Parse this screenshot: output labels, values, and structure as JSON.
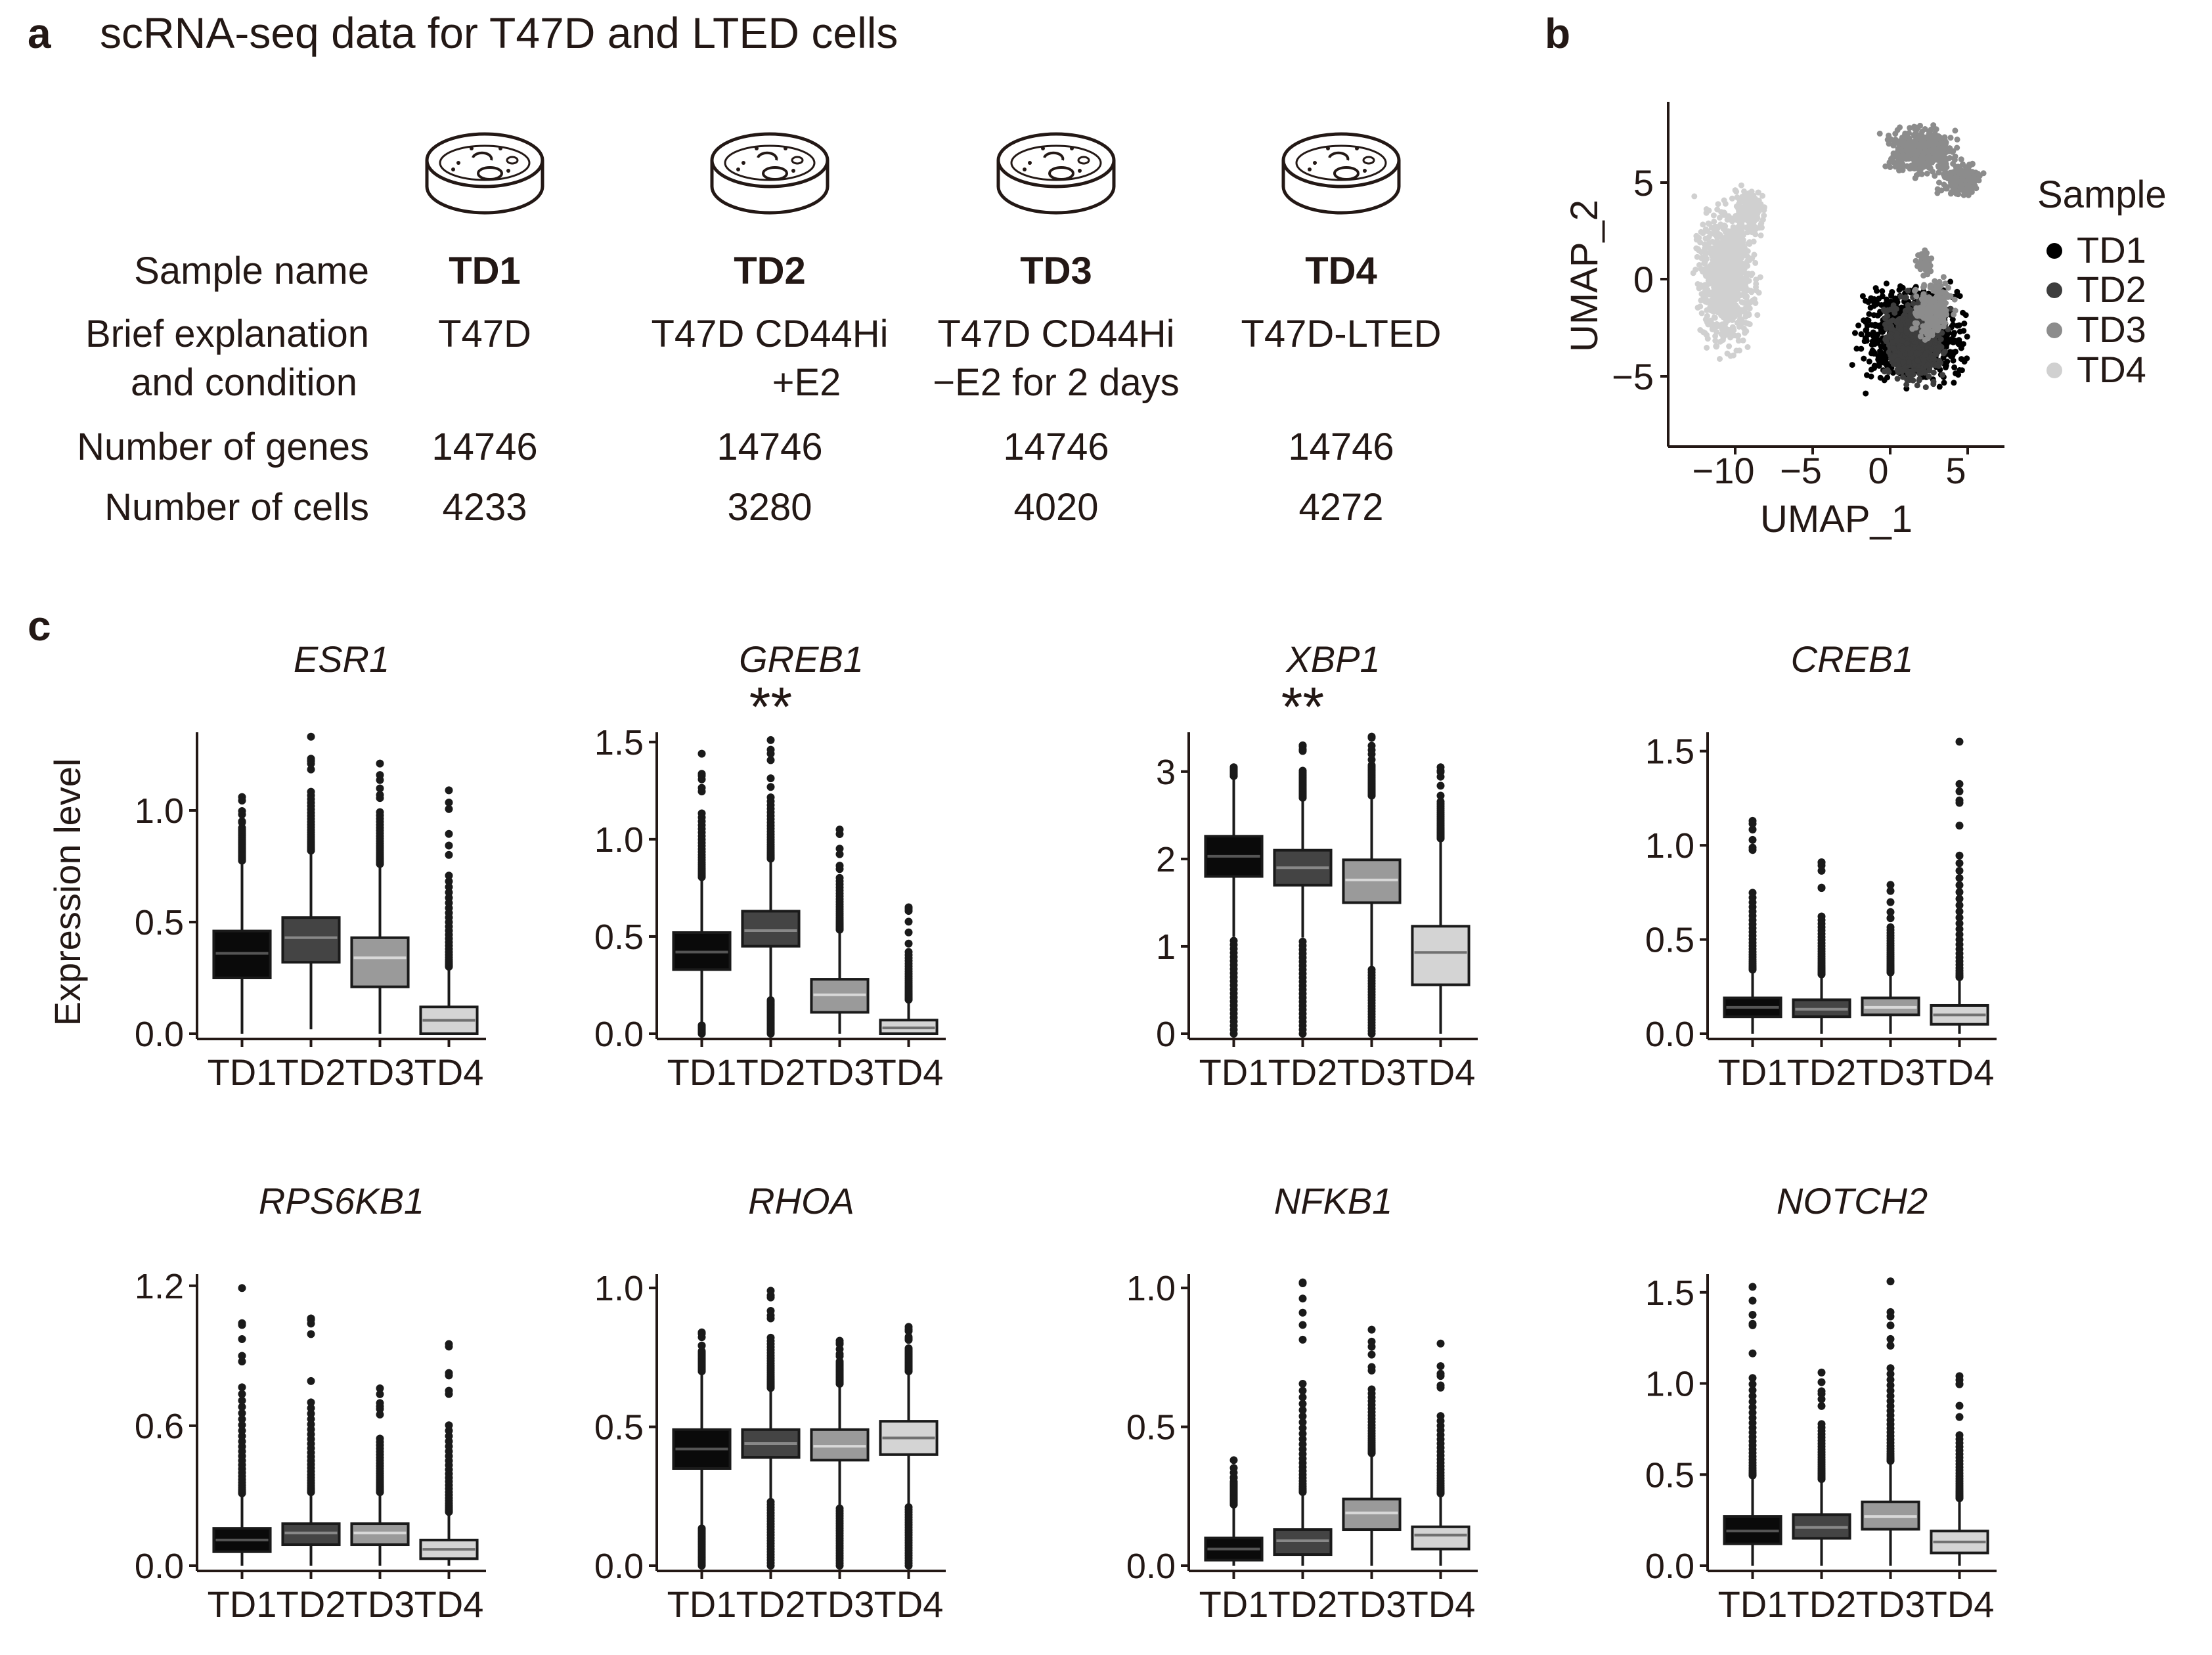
{
  "panel_a": {
    "letter": "a",
    "title": "scRNA-seq data for T47D and LTED cells",
    "row_labels": {
      "sample": "Sample name",
      "explain1": "Brief explanation",
      "explain2": "and condition",
      "genes": "Number of genes",
      "cells": "Number of cells"
    },
    "samples": [
      {
        "name": "TD1",
        "desc1": "T47D",
        "desc2": "",
        "genes": "14746",
        "cells": "4233"
      },
      {
        "name": "TD2",
        "desc1": "T47D CD44Hi",
        "desc2": "+E2",
        "genes": "14746",
        "cells": "3280"
      },
      {
        "name": "TD3",
        "desc1": "T47D CD44Hi",
        "desc2": "−E2 for 2 days",
        "genes": "14746",
        "cells": "4020"
      },
      {
        "name": "TD4",
        "desc1": "T47D-LTED",
        "desc2": "",
        "genes": "14746",
        "cells": "4272"
      }
    ]
  },
  "panel_b": {
    "letter": "b",
    "xlabel": "UMAP_1",
    "ylabel": "UMAP_2",
    "xticks": [
      "−10",
      "−5",
      "0",
      "5"
    ],
    "yticks": [
      "5",
      "0",
      "−5"
    ],
    "legend_title": "Sample",
    "legend": [
      {
        "label": "TD1",
        "color": "#000000"
      },
      {
        "label": "TD2",
        "color": "#3d3d3d"
      },
      {
        "label": "TD3",
        "color": "#8c8c8c"
      },
      {
        "label": "TD4",
        "color": "#d0d0d0"
      }
    ]
  },
  "panel_c_letter": "c",
  "chart_data": [
    {
      "type": "box",
      "title": "ESR1",
      "ylabel": "Expression level",
      "ylim": [
        0,
        1.35
      ],
      "yticks": [
        "0.0",
        "0.5",
        "1.0"
      ],
      "categories": [
        "TD1",
        "TD2",
        "TD3",
        "TD4"
      ],
      "boxes": [
        {
          "q1": 0.25,
          "median": 0.36,
          "q3": 0.46
        },
        {
          "q1": 0.32,
          "median": 0.43,
          "q3": 0.52
        },
        {
          "q1": 0.21,
          "median": 0.34,
          "q3": 0.43
        },
        {
          "q1": 0.0,
          "median": 0.06,
          "q3": 0.12
        }
      ],
      "max_outliers": [
        1.06,
        1.33,
        1.21,
        1.09
      ],
      "significance": ""
    },
    {
      "type": "box",
      "title": "GREB1",
      "ylabel": "",
      "ylim": [
        0,
        1.55
      ],
      "yticks": [
        "0.0",
        "0.5",
        "1.0",
        "1.5"
      ],
      "categories": [
        "TD1",
        "TD2",
        "TD3",
        "TD4"
      ],
      "boxes": [
        {
          "q1": 0.33,
          "median": 0.42,
          "q3": 0.52
        },
        {
          "q1": 0.45,
          "median": 0.53,
          "q3": 0.63
        },
        {
          "q1": 0.11,
          "median": 0.2,
          "q3": 0.28
        },
        {
          "q1": 0.0,
          "median": 0.03,
          "q3": 0.07
        }
      ],
      "max_outliers": [
        1.44,
        1.51,
        1.05,
        0.65
      ],
      "significance": "**"
    },
    {
      "type": "box",
      "title": "XBP1",
      "ylabel": "",
      "ylim": [
        0,
        3.45
      ],
      "yticks": [
        "0",
        "1",
        "2",
        "3"
      ],
      "categories": [
        "TD1",
        "TD2",
        "TD3",
        "TD4"
      ],
      "boxes": [
        {
          "q1": 1.8,
          "median": 2.03,
          "q3": 2.26
        },
        {
          "q1": 1.7,
          "median": 1.9,
          "q3": 2.1
        },
        {
          "q1": 1.5,
          "median": 1.76,
          "q3": 1.99
        },
        {
          "q1": 0.56,
          "median": 0.93,
          "q3": 1.23
        }
      ],
      "max_outliers": [
        3.05,
        3.3,
        3.4,
        3.05
      ],
      "significance": "**"
    },
    {
      "type": "box",
      "title": "CREB1",
      "ylabel": "",
      "ylim": [
        0,
        1.6
      ],
      "yticks": [
        "0.0",
        "0.5",
        "1.0",
        "1.5"
      ],
      "categories": [
        "TD1",
        "TD2",
        "TD3",
        "TD4"
      ],
      "boxes": [
        {
          "q1": 0.09,
          "median": 0.14,
          "q3": 0.19
        },
        {
          "q1": 0.09,
          "median": 0.13,
          "q3": 0.18
        },
        {
          "q1": 0.1,
          "median": 0.14,
          "q3": 0.19
        },
        {
          "q1": 0.05,
          "median": 0.1,
          "q3": 0.15
        }
      ],
      "max_outliers": [
        1.13,
        0.91,
        0.79,
        1.55
      ],
      "significance": ""
    },
    {
      "type": "box",
      "title": "RPS6KB1",
      "ylabel": "",
      "ylim": [
        0,
        1.25
      ],
      "yticks": [
        "0.0",
        "0.6",
        "1.2"
      ],
      "categories": [
        "TD1",
        "TD2",
        "TD3",
        "TD4"
      ],
      "boxes": [
        {
          "q1": 0.06,
          "median": 0.11,
          "q3": 0.16
        },
        {
          "q1": 0.09,
          "median": 0.14,
          "q3": 0.18
        },
        {
          "q1": 0.09,
          "median": 0.14,
          "q3": 0.18
        },
        {
          "q1": 0.03,
          "median": 0.07,
          "q3": 0.11
        }
      ],
      "max_outliers": [
        1.19,
        1.06,
        0.76,
        0.95
      ],
      "significance": ""
    },
    {
      "type": "box",
      "title": "RHOA",
      "ylabel": "",
      "ylim": [
        0,
        1.05
      ],
      "yticks": [
        "0.0",
        "0.5",
        "1.0"
      ],
      "categories": [
        "TD1",
        "TD2",
        "TD3",
        "TD4"
      ],
      "boxes": [
        {
          "q1": 0.35,
          "median": 0.42,
          "q3": 0.49
        },
        {
          "q1": 0.39,
          "median": 0.44,
          "q3": 0.49
        },
        {
          "q1": 0.38,
          "median": 0.43,
          "q3": 0.49
        },
        {
          "q1": 0.4,
          "median": 0.46,
          "q3": 0.52
        }
      ],
      "max_outliers": [
        0.84,
        0.99,
        0.81,
        0.86
      ],
      "significance": ""
    },
    {
      "type": "box",
      "title": "NFKB1",
      "ylabel": "",
      "ylim": [
        0,
        1.05
      ],
      "yticks": [
        "0.0",
        "0.5",
        "1.0"
      ],
      "categories": [
        "TD1",
        "TD2",
        "TD3",
        "TD4"
      ],
      "boxes": [
        {
          "q1": 0.02,
          "median": 0.06,
          "q3": 0.1
        },
        {
          "q1": 0.04,
          "median": 0.09,
          "q3": 0.13
        },
        {
          "q1": 0.13,
          "median": 0.19,
          "q3": 0.24
        },
        {
          "q1": 0.06,
          "median": 0.11,
          "q3": 0.14
        }
      ],
      "max_outliers": [
        0.38,
        1.02,
        0.85,
        0.8
      ],
      "significance": ""
    },
    {
      "type": "box",
      "title": "NOTCH2",
      "ylabel": "",
      "ylim": [
        0,
        1.6
      ],
      "yticks": [
        "0.0",
        "0.5",
        "1.0",
        "1.5"
      ],
      "categories": [
        "TD1",
        "TD2",
        "TD3",
        "TD4"
      ],
      "boxes": [
        {
          "q1": 0.12,
          "median": 0.19,
          "q3": 0.27
        },
        {
          "q1": 0.15,
          "median": 0.21,
          "q3": 0.28
        },
        {
          "q1": 0.2,
          "median": 0.27,
          "q3": 0.35
        },
        {
          "q1": 0.07,
          "median": 0.13,
          "q3": 0.19
        }
      ],
      "max_outliers": [
        1.53,
        1.06,
        1.56,
        1.04
      ],
      "significance": ""
    }
  ]
}
